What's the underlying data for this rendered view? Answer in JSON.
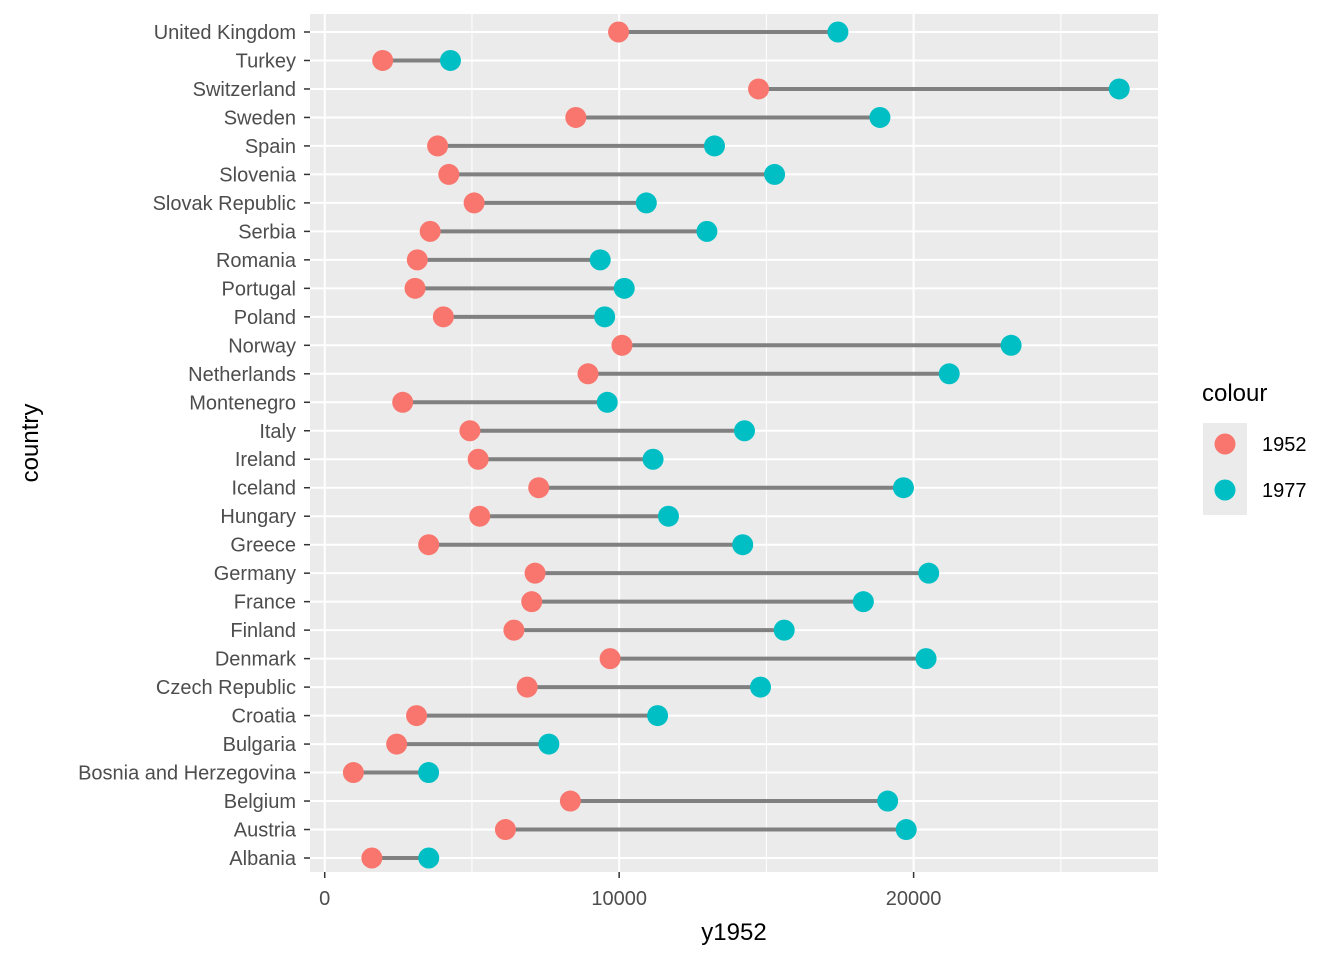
{
  "chart_data": {
    "type": "dumbbell",
    "xlabel": "y1952",
    "ylabel": "country",
    "xlim": [
      -500,
      28300
    ],
    "x_ticks": [
      0,
      10000,
      20000
    ],
    "x_tick_labels": [
      "0",
      "10000",
      "20000"
    ],
    "x_minor_ticks": [
      5000,
      15000,
      25000
    ],
    "grid": true,
    "legend": {
      "title": "colour",
      "position": "right",
      "entries": [
        {
          "label": "1952",
          "color": "#F8766D"
        },
        {
          "label": "1977",
          "color": "#00BFC4"
        }
      ]
    },
    "segment_color": "#808080",
    "panel_background": "#EBEBEB",
    "categories": [
      "Albania",
      "Austria",
      "Belgium",
      "Bosnia and Herzegovina",
      "Bulgaria",
      "Croatia",
      "Czech Republic",
      "Denmark",
      "Finland",
      "France",
      "Germany",
      "Greece",
      "Hungary",
      "Iceland",
      "Ireland",
      "Italy",
      "Montenegro",
      "Netherlands",
      "Norway",
      "Poland",
      "Portugal",
      "Romania",
      "Serbia",
      "Slovak Republic",
      "Slovenia",
      "Spain",
      "Sweden",
      "Switzerland",
      "Turkey",
      "United Kingdom"
    ],
    "series": [
      {
        "name": "1952",
        "values": [
          1601,
          6137,
          8343,
          974,
          2444,
          3119,
          6876,
          9692,
          6425,
          7030,
          7144,
          3531,
          5264,
          7268,
          5211,
          4931,
          2648,
          8942,
          10095,
          4029,
          3068,
          3145,
          3581,
          5074,
          4215,
          3834,
          8528,
          14734,
          1969,
          9980
        ]
      },
      {
        "name": "1977",
        "values": [
          3533,
          19749,
          19118,
          3528,
          7612,
          11305,
          14800,
          20423,
          15605,
          18293,
          20513,
          14196,
          11674,
          19655,
          11151,
          14256,
          9595,
          21209,
          23311,
          9508,
          10172,
          9356,
          12980,
          10922,
          15278,
          13237,
          18856,
          26982,
          4270,
          17429
        ]
      }
    ]
  }
}
